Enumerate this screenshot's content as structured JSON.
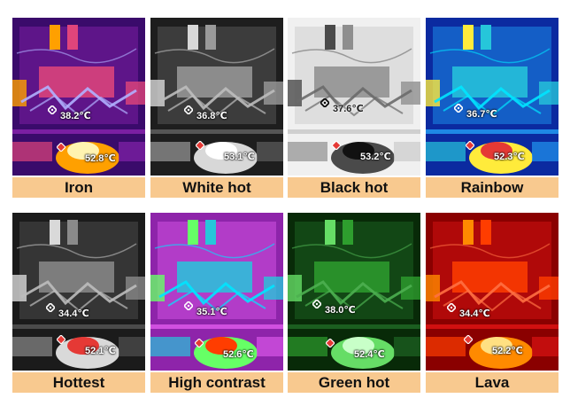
{
  "palettes": [
    {
      "label": "Iron",
      "reading_low": "38.2℃",
      "reading_high": "52.8℃",
      "colors": {
        "bg": "#3a0b6b",
        "mid": "#7b1fa2",
        "warm": "#e0457b",
        "hot": "#ffa000",
        "max": "#fff3b0",
        "wire": "#b0b0ff"
      }
    },
    {
      "label": "White hot",
      "reading_low": "36.8℃",
      "reading_high": "53.1℃",
      "colors": {
        "bg": "#1e1e1e",
        "mid": "#555555",
        "warm": "#9a9a9a",
        "hot": "#d8d8d8",
        "max": "#ffffff",
        "wire": "#bdbdbd"
      }
    },
    {
      "label": "Black hot",
      "reading_low": "37.6℃",
      "reading_high": "53.2℃",
      "colors": {
        "bg": "#f0f0f0",
        "mid": "#cfcfcf",
        "warm": "#8e8e8e",
        "hot": "#4a4a4a",
        "max": "#111111",
        "wire": "#6a6a6a"
      }
    },
    {
      "label": "Rainbow",
      "reading_low": "36.7℃",
      "reading_high": "52.3℃",
      "colors": {
        "bg": "#0b2aa0",
        "mid": "#1e88e5",
        "warm": "#26c6da",
        "hot": "#ffeb3b",
        "max": "#e53935",
        "wire": "#00e5ff"
      }
    },
    {
      "label": "Hottest",
      "reading_low": "34.4℃",
      "reading_high": "52.1℃",
      "colors": {
        "bg": "#1b1b1b",
        "mid": "#4a4a4a",
        "warm": "#8a8a8a",
        "hot": "#d9d9d9",
        "max": "#e53935",
        "wire": "#bdbdbd"
      }
    },
    {
      "label": "High contrast",
      "reading_low": "35.1℃",
      "reading_high": "52.6℃",
      "colors": {
        "bg": "#8e24aa",
        "mid": "#d050e0",
        "warm": "#26c6da",
        "hot": "#66ff66",
        "max": "#ff3d00",
        "wire": "#00e5ff"
      }
    },
    {
      "label": "Green hot",
      "reading_low": "38.0℃",
      "reading_high": "52.4℃",
      "colors": {
        "bg": "#082a08",
        "mid": "#1b5e20",
        "warm": "#2e9e2e",
        "hot": "#66dd66",
        "max": "#c8ffc8",
        "wire": "#4caf50"
      }
    },
    {
      "label": "Lava",
      "reading_low": "34.4℃",
      "reading_high": "52.2℃",
      "colors": {
        "bg": "#8a0000",
        "mid": "#d01010",
        "warm": "#ff3d00",
        "hot": "#ff8a00",
        "max": "#ffe082",
        "wire": "#ff7043"
      }
    }
  ]
}
